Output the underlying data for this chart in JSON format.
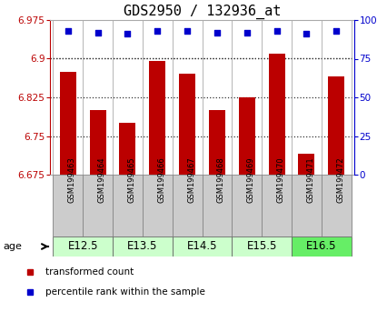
{
  "title": "GDS2950 / 132936_at",
  "samples": [
    "GSM199463",
    "GSM199464",
    "GSM199465",
    "GSM199466",
    "GSM199467",
    "GSM199468",
    "GSM199469",
    "GSM199470",
    "GSM199471",
    "GSM199472"
  ],
  "transformed_counts": [
    6.875,
    6.8,
    6.775,
    6.895,
    6.87,
    6.8,
    6.825,
    6.91,
    6.715,
    6.865
  ],
  "percentile_ranks": [
    93,
    92,
    91,
    93,
    93,
    92,
    92,
    93,
    91,
    93
  ],
  "ylim": [
    6.675,
    6.975
  ],
  "yticks": [
    6.675,
    6.75,
    6.825,
    6.9,
    6.975
  ],
  "ytick_labels": [
    "6.675",
    "6.75",
    "6.825",
    "6.9",
    "6.975"
  ],
  "right_yticks": [
    0,
    25,
    50,
    75,
    100
  ],
  "right_ytick_labels": [
    "0",
    "25",
    "50",
    "75",
    "100%"
  ],
  "bar_color": "#bb0000",
  "dot_color": "#0000cc",
  "age_groups": [
    {
      "label": "E12.5",
      "start": 0,
      "end": 2,
      "color": "#ccffcc"
    },
    {
      "label": "E13.5",
      "start": 2,
      "end": 4,
      "color": "#ccffcc"
    },
    {
      "label": "E14.5",
      "start": 4,
      "end": 6,
      "color": "#ccffcc"
    },
    {
      "label": "E15.5",
      "start": 6,
      "end": 8,
      "color": "#ccffcc"
    },
    {
      "label": "E16.5",
      "start": 8,
      "end": 10,
      "color": "#66ee66"
    }
  ],
  "legend_items": [
    {
      "label": "transformed count",
      "color": "#bb0000"
    },
    {
      "label": "percentile rank within the sample",
      "color": "#0000cc"
    }
  ],
  "grid_color": "#333333",
  "bg_color": "#ffffff",
  "sample_bg": "#cccccc",
  "bar_width": 0.55,
  "title_fontsize": 11,
  "tick_fontsize": 7.5,
  "sample_fontsize": 6,
  "age_fontsize": 8.5,
  "legend_fontsize": 7.5
}
